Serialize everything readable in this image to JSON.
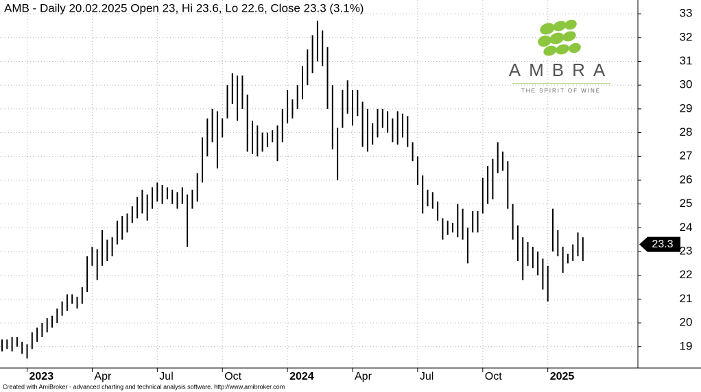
{
  "chart_data": {
    "type": "range",
    "title": "AMB - Daily 20.02.2025 Open 23, Hi 23.6, Lo 22.6, Close 23.3 (3.1%)",
    "footer": "Created with AmiBroker - advanced charting and technical analysis software. http://www.amibroker.com",
    "logo": {
      "name": "AMBRA",
      "tagline": "THE SPIRIT OF WINE"
    },
    "last_price": 23.3,
    "color": "#000000",
    "grid": true,
    "ylim": [
      18.1,
      33.58
    ],
    "yticks": [
      19,
      20,
      21,
      22,
      23,
      24,
      25,
      26,
      27,
      28,
      29,
      30,
      31,
      32,
      33
    ],
    "categories": [
      null,
      null,
      null,
      null,
      null,
      "2023",
      null,
      null,
      null,
      null,
      null,
      null,
      null,
      null,
      null,
      null,
      null,
      null,
      "Apr",
      null,
      null,
      null,
      null,
      null,
      null,
      null,
      null,
      null,
      null,
      null,
      null,
      "Jul",
      null,
      null,
      null,
      null,
      null,
      null,
      null,
      null,
      null,
      null,
      null,
      null,
      "Oct",
      null,
      null,
      null,
      null,
      null,
      null,
      null,
      null,
      null,
      null,
      null,
      null,
      "2024",
      null,
      null,
      null,
      null,
      null,
      null,
      null,
      null,
      null,
      null,
      null,
      null,
      "Apr",
      null,
      null,
      null,
      null,
      null,
      null,
      null,
      null,
      null,
      null,
      null,
      null,
      "Jul",
      null,
      null,
      null,
      null,
      null,
      null,
      null,
      null,
      null,
      null,
      null,
      null,
      "Oct",
      null,
      null,
      null,
      null,
      null,
      null,
      null,
      null,
      null,
      null,
      null,
      null,
      "2025",
      null,
      null,
      null,
      null,
      null,
      null,
      null
    ],
    "low": [
      18.8,
      18.9,
      18.8,
      19.0,
      18.7,
      18.5,
      18.9,
      19.2,
      19.4,
      19.6,
      19.8,
      20.0,
      20.3,
      20.5,
      20.8,
      20.6,
      20.8,
      21.3,
      22.4,
      21.8,
      22.4,
      22.6,
      22.8,
      23.3,
      23.5,
      23.8,
      24.2,
      24.4,
      24.6,
      24.3,
      24.8,
      25.1,
      25.0,
      25.2,
      25.0,
      24.8,
      25.0,
      23.2,
      24.8,
      25.1,
      25.9,
      27.0,
      27.6,
      26.5,
      27.8,
      28.6,
      29.2,
      28.5,
      29.0,
      27.2,
      27.1,
      27.0,
      27.2,
      27.4,
      27.6,
      26.8,
      27.6,
      28.4,
      28.6,
      29.0,
      29.4,
      30.0,
      30.5,
      31.0,
      30.8,
      29.0,
      27.3,
      26.0,
      28.2,
      28.8,
      28.3,
      28.7,
      27.4,
      27.2,
      27.5,
      27.8,
      28.2,
      28.0,
      27.6,
      27.5,
      27.8,
      27.4,
      26.8,
      25.8,
      24.6,
      24.9,
      24.8,
      24.3,
      23.5,
      23.7,
      23.8,
      23.6,
      23.5,
      22.5,
      23.8,
      23.8,
      24.6,
      25.0,
      25.2,
      26.3,
      26.4,
      24.8,
      23.5,
      22.6,
      21.8,
      22.4,
      22.3,
      22.0,
      21.4,
      20.9,
      23.0,
      22.8,
      22.1,
      22.5,
      22.6,
      22.8,
      22.6
    ],
    "high": [
      19.3,
      19.3,
      19.4,
      19.4,
      19.2,
      19.1,
      19.6,
      19.8,
      20.0,
      20.2,
      20.3,
      20.6,
      20.9,
      21.2,
      21.2,
      21.1,
      21.5,
      22.8,
      23.2,
      23.1,
      23.9,
      23.5,
      23.6,
      24.3,
      24.5,
      24.6,
      24.9,
      25.3,
      25.6,
      25.4,
      25.7,
      25.9,
      25.8,
      25.7,
      25.6,
      25.5,
      25.7,
      25.4,
      25.6,
      26.3,
      27.8,
      28.6,
      29.0,
      28.9,
      28.6,
      30.0,
      30.5,
      30.4,
      30.4,
      29.6,
      28.5,
      28.3,
      28.0,
      28.0,
      28.1,
      28.3,
      29.0,
      29.8,
      29.4,
      30.0,
      30.8,
      31.5,
      32.1,
      32.7,
      32.3,
      31.6,
      30.0,
      28.2,
      29.8,
      30.2,
      29.8,
      29.8,
      29.3,
      29.0,
      28.4,
      29.0,
      29.0,
      28.9,
      28.6,
      28.9,
      28.8,
      28.7,
      27.6,
      27.0,
      26.2,
      25.6,
      25.5,
      25.1,
      24.4,
      24.3,
      24.2,
      25.0,
      24.8,
      24.0,
      24.7,
      24.7,
      26.1,
      26.6,
      26.9,
      27.6,
      27.2,
      26.8,
      25.0,
      24.1,
      23.6,
      23.4,
      23.2,
      23.0,
      22.7,
      22.4,
      24.8,
      23.9,
      23.2,
      22.9,
      23.3,
      23.8,
      23.6
    ]
  }
}
